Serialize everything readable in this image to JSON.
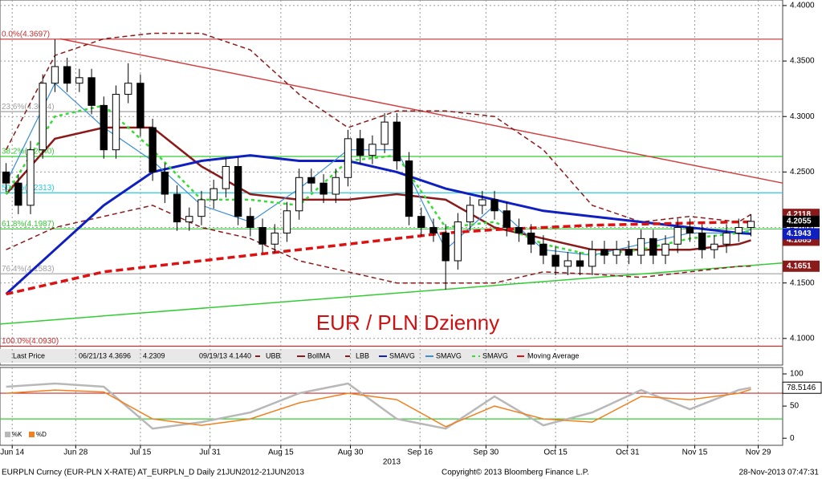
{
  "chart_data": {
    "type": "candlestick",
    "annotation": "EUR / PLN Dzienny",
    "xlim": [
      -0.5,
      63.6
    ],
    "xticks": [
      {
        "value": 0.5,
        "label": "Jun 14"
      },
      {
        "value": 5.7,
        "label": "Jun 28"
      },
      {
        "value": 11,
        "label": "Jul 15"
      },
      {
        "value": 16.7,
        "label": "Jul 31"
      },
      {
        "value": 22.5,
        "label": "Aug 15"
      },
      {
        "value": 28.2,
        "label": "Aug 30"
      },
      {
        "value": 33.9,
        "label": "Sep 16"
      },
      {
        "value": 39.3,
        "label": "Sep 30"
      },
      {
        "value": 45,
        "label": "Oct 15"
      },
      {
        "value": 50.9,
        "label": "Oct 31"
      },
      {
        "value": 56.4,
        "label": "Nov 15"
      },
      {
        "value": 61.6,
        "label": "Nov 29"
      }
    ],
    "x_year": "2013",
    "ylim": [
      4.076,
      4.405
    ],
    "yticks": [
      {
        "value": 4.1,
        "label": "4.1000"
      },
      {
        "value": 4.15,
        "label": "4.1500"
      },
      {
        "value": 4.2,
        "label": "4.2000"
      },
      {
        "value": 4.25,
        "label": "4.2500"
      },
      {
        "value": 4.3,
        "label": "4.3000"
      },
      {
        "value": 4.35,
        "label": "4.3500"
      },
      {
        "value": 4.4,
        "label": "4.4000"
      }
    ],
    "grid": true,
    "up_color": "#ffffff",
    "down_color": "#000000",
    "open": [
      4.25,
      4.24,
      4.22,
      4.27,
      4.33,
      4.345,
      4.33,
      4.335,
      4.31,
      4.27,
      4.32,
      4.33,
      4.29,
      4.25,
      4.23,
      4.205,
      4.21,
      4.225,
      4.235,
      4.255,
      4.21,
      4.2,
      4.185,
      4.195,
      4.215,
      4.245,
      4.24,
      4.23,
      4.245,
      4.28,
      4.265,
      4.275,
      4.295,
      4.26,
      4.21,
      4.2,
      4.195,
      4.17,
      4.205,
      4.22,
      4.225,
      4.215,
      4.2,
      4.195,
      4.185,
      4.175,
      4.165,
      4.17,
      4.165,
      4.18,
      4.175,
      4.18,
      4.175,
      4.19,
      4.175,
      4.185,
      4.2,
      4.195,
      4.18,
      4.185,
      4.195,
      4.2
    ],
    "high": [
      4.258,
      4.248,
      4.278,
      4.338,
      4.3696,
      4.353,
      4.343,
      4.343,
      4.318,
      4.328,
      4.348,
      4.338,
      4.298,
      4.258,
      4.238,
      4.218,
      4.233,
      4.243,
      4.263,
      4.263,
      4.218,
      4.208,
      4.203,
      4.223,
      4.253,
      4.253,
      4.248,
      4.253,
      4.288,
      4.288,
      4.283,
      4.303,
      4.303,
      4.268,
      4.218,
      4.208,
      4.203,
      4.213,
      4.228,
      4.233,
      4.233,
      4.223,
      4.208,
      4.203,
      4.193,
      4.183,
      4.178,
      4.178,
      4.188,
      4.188,
      4.188,
      4.188,
      4.198,
      4.198,
      4.193,
      4.208,
      4.208,
      4.203,
      4.193,
      4.203,
      4.208,
      4.212
    ],
    "low": [
      4.232,
      4.212,
      4.212,
      4.262,
      4.322,
      4.322,
      4.322,
      4.302,
      4.262,
      4.262,
      4.312,
      4.282,
      4.242,
      4.222,
      4.197,
      4.197,
      4.202,
      4.217,
      4.227,
      4.202,
      4.192,
      4.177,
      4.177,
      4.187,
      4.207,
      4.232,
      4.222,
      4.222,
      4.237,
      4.257,
      4.257,
      4.267,
      4.252,
      4.202,
      4.192,
      4.187,
      4.144,
      4.162,
      4.197,
      4.212,
      4.207,
      4.192,
      4.187,
      4.177,
      4.167,
      4.157,
      4.157,
      4.157,
      4.157,
      4.167,
      4.167,
      4.167,
      4.167,
      4.167,
      4.167,
      4.177,
      4.187,
      4.172,
      4.172,
      4.177,
      4.187,
      4.192
    ],
    "close": [
      4.24,
      4.22,
      4.27,
      4.33,
      4.345,
      4.33,
      4.335,
      4.31,
      4.27,
      4.32,
      4.33,
      4.29,
      4.25,
      4.23,
      4.205,
      4.21,
      4.225,
      4.235,
      4.255,
      4.21,
      4.2,
      4.185,
      4.195,
      4.215,
      4.245,
      4.24,
      4.23,
      4.245,
      4.28,
      4.265,
      4.275,
      4.295,
      4.26,
      4.21,
      4.2,
      4.195,
      4.17,
      4.205,
      4.22,
      4.225,
      4.215,
      4.2,
      4.195,
      4.185,
      4.175,
      4.165,
      4.17,
      4.165,
      4.18,
      4.175,
      4.18,
      4.175,
      4.19,
      4.175,
      4.185,
      4.2,
      4.195,
      4.18,
      4.185,
      4.195,
      4.2,
      4.2055
    ],
    "last_color": "#000000",
    "overlay_x": [
      0,
      4,
      8,
      12,
      16,
      20,
      24,
      28,
      32,
      36,
      40,
      44,
      48,
      52,
      56,
      60,
      61
    ],
    "overlays": [
      {
        "name": "UBB",
        "color": "#8b1a1a",
        "dash": "6,4",
        "width": 1.5,
        "box": true,
        "values": [
          4.27,
          4.355,
          4.37,
          4.375,
          4.375,
          4.36,
          4.32,
          4.29,
          4.305,
          4.305,
          4.3,
          4.27,
          4.22,
          4.205,
          4.21,
          4.205,
          4.2118
        ]
      },
      {
        "name": "BollMA",
        "color": "#8b1a1a",
        "dash": "",
        "width": 2.5,
        "box": true,
        "values": [
          4.23,
          4.28,
          4.29,
          4.29,
          4.255,
          4.23,
          4.225,
          4.225,
          4.23,
          4.225,
          4.2,
          4.19,
          4.18,
          4.18,
          4.18,
          4.185,
          4.1885
        ]
      },
      {
        "name": "LBB",
        "color": "#8b1a1a",
        "dash": "6,4",
        "width": 1.5,
        "box": true,
        "values": [
          4.18,
          4.2,
          4.21,
          4.22,
          4.2,
          4.19,
          4.17,
          4.16,
          4.15,
          4.15,
          4.15,
          4.16,
          4.158,
          4.155,
          4.16,
          4.165,
          4.1651
        ]
      },
      {
        "name": "SMAVG",
        "color": "#1020c0",
        "dash": "",
        "width": 3,
        "box": true,
        "values": [
          4.14,
          4.18,
          4.22,
          4.25,
          4.26,
          4.265,
          4.26,
          4.26,
          4.25,
          4.235,
          4.225,
          4.215,
          4.21,
          4.205,
          4.2,
          4.195,
          4.1943
        ]
      },
      {
        "name": "SMAVG",
        "color": "#3a8fd8",
        "dash": "",
        "width": 1.2,
        "box": false,
        "values": [
          4.24,
          4.33,
          4.29,
          4.26,
          4.22,
          4.205,
          4.235,
          4.27,
          4.27,
          4.18,
          4.22,
          4.18,
          4.175,
          4.185,
          4.195,
          4.195,
          4.198
        ]
      },
      {
        "name": "SMAVG",
        "color": "#33dd33",
        "dash": "4,4",
        "width": 2.5,
        "box": false,
        "values": [
          4.23,
          4.3,
          4.31,
          4.27,
          4.225,
          4.225,
          4.22,
          4.26,
          4.265,
          4.2,
          4.205,
          4.185,
          4.175,
          4.18,
          4.19,
          4.195,
          4.197
        ]
      },
      {
        "name": "Moving Average",
        "color": "#dd1111",
        "dash": "9,5",
        "width": 3.5,
        "box": false,
        "values": [
          4.14,
          4.15,
          4.16,
          4.165,
          4.17,
          4.175,
          4.18,
          4.185,
          4.19,
          4.195,
          4.198,
          4.2,
          4.202,
          4.203,
          4.204,
          4.205,
          4.205
        ]
      }
    ],
    "fib_levels": [
      {
        "value": 4.3697,
        "label": "0.0%(4.3697)",
        "color": "#c03030"
      },
      {
        "value": 4.3044,
        "label": "23.6%(4.3044)",
        "color": "#a0a0a0"
      },
      {
        "value": 4.264,
        "label": "38.2%(4.2640)",
        "color": "#33cc33"
      },
      {
        "value": 4.2313,
        "label": "50.0%(4.2313)",
        "color": "#22ccdd"
      },
      {
        "value": 4.1987,
        "label": "61.8%(4.1987)",
        "color": "#33cc33"
      },
      {
        "value": 4.1583,
        "label": "76.4%(4.1583)",
        "color": "#a0a0a0"
      },
      {
        "value": 4.093,
        "label": "100.0%(4.0930)",
        "color": "#c03030"
      }
    ],
    "trendlines": [
      {
        "color": "#d04040",
        "x": [
          4.43,
          63.6
        ],
        "values": [
          4.37,
          4.24
        ]
      },
      {
        "color": "#33cc33",
        "x": [
          -0.5,
          63.6
        ],
        "values": [
          4.113,
          4.168
        ]
      }
    ],
    "legend": [
      "Last Price",
      "06/21/13 4.3696",
      "4.2309",
      "09/19/13 4.1440"
    ],
    "stoch": {
      "ylim": [
        -11,
        110
      ],
      "yticks": [
        0,
        50,
        100
      ],
      "levels": [
        70,
        30
      ],
      "level_colors": [
        "#c03030",
        "#33cc33"
      ],
      "x": [
        0,
        4,
        8,
        12,
        16,
        20,
        24,
        28,
        32,
        36,
        40,
        44,
        48,
        52,
        56,
        60,
        61
      ],
      "series": [
        {
          "name": "%K",
          "color": "#b8b8b8",
          "values": [
            80,
            85,
            80,
            15,
            25,
            40,
            70,
            85,
            30,
            15,
            65,
            20,
            40,
            75,
            45,
            75,
            78.5146
          ]
        },
        {
          "name": "%D",
          "color": "#f08020",
          "values": [
            70,
            75,
            72,
            30,
            20,
            30,
            55,
            70,
            60,
            18,
            50,
            30,
            25,
            65,
            60,
            70,
            76
          ]
        }
      ]
    },
    "footer": {
      "left": "EURPLN Curncy (EUR-PLN X-RATE) AT_EURPLN_D  Daily 21JUN2012-21JUN2013",
      "center": "Copyright© 2013 Bloomberg Finance L.P.",
      "right": "28-Nov-2013 07:47:31"
    }
  }
}
